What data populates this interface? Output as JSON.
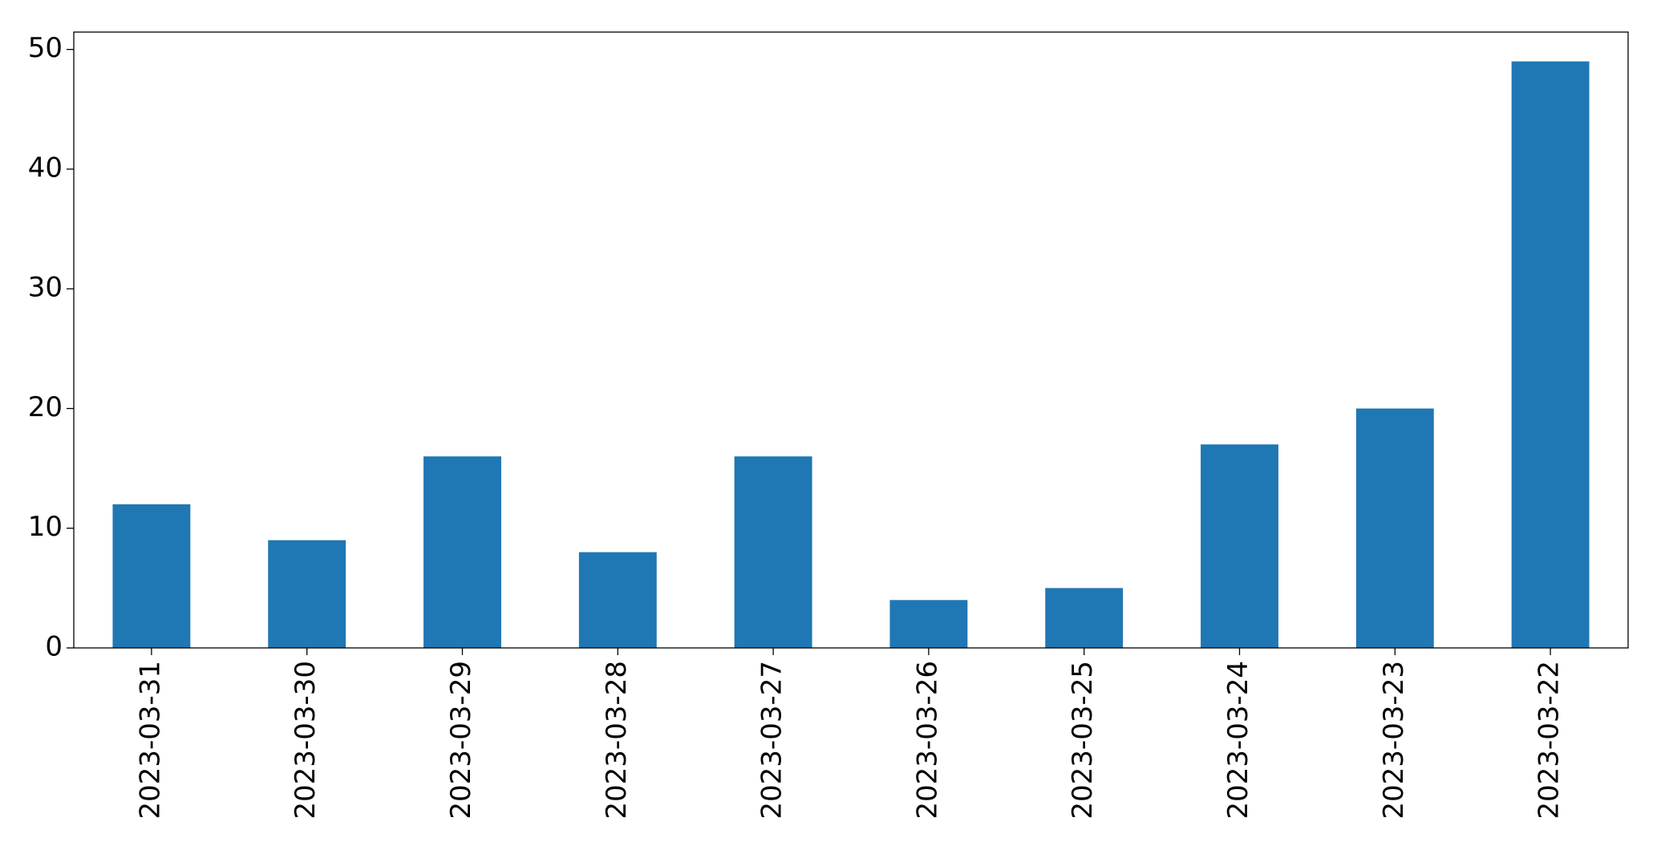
{
  "chart_data": {
    "type": "bar",
    "categories": [
      "2023-03-31",
      "2023-03-30",
      "2023-03-29",
      "2023-03-28",
      "2023-03-27",
      "2023-03-26",
      "2023-03-25",
      "2023-03-24",
      "2023-03-23",
      "2023-03-22"
    ],
    "values": [
      12,
      9,
      16,
      8,
      16,
      4,
      5,
      17,
      20,
      49
    ],
    "color": "#1f77b4",
    "ylim": [
      0,
      51.45
    ],
    "yticks": [
      0,
      10,
      20,
      30,
      40,
      50
    ],
    "grid": false
  }
}
